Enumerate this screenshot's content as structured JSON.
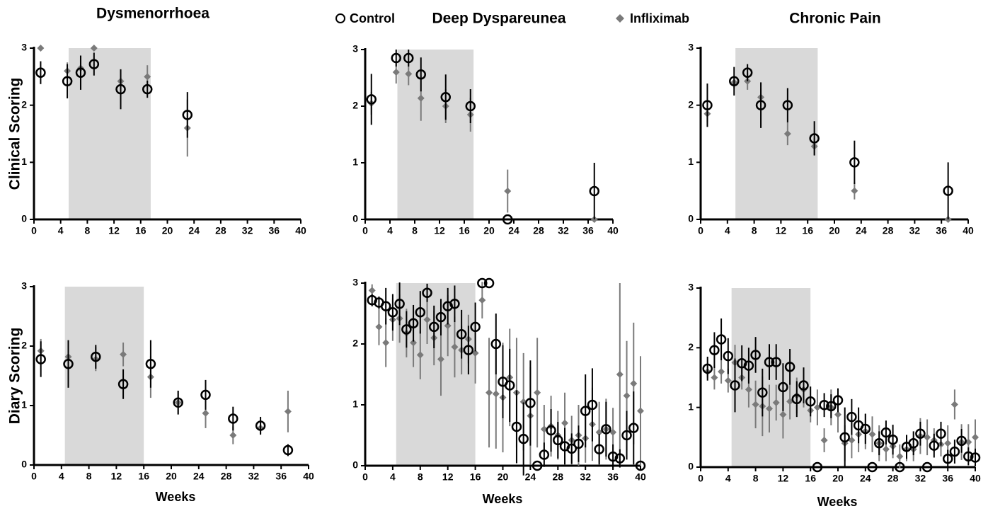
{
  "chart_data": [
    {
      "type": "scatter",
      "title": "Dysmenorrhoea",
      "ylabel": "Clinical Scoring",
      "xlim": [
        0,
        40
      ],
      "xticks": [
        0,
        4,
        8,
        12,
        16,
        20,
        24,
        28,
        32,
        36,
        40
      ],
      "ylim": [
        0,
        3
      ],
      "yticks": [
        0,
        1,
        2,
        3
      ],
      "shaded_span": [
        5.2,
        17.5
      ],
      "series": [
        {
          "name": "Control",
          "color": "#000000",
          "marker": "open-circle",
          "x": [
            1,
            5,
            7,
            9,
            13,
            17,
            23
          ],
          "values": [
            2.57,
            2.42,
            2.57,
            2.72,
            2.28,
            2.28,
            1.83
          ],
          "errors": [
            0.2,
            0.3,
            0.3,
            0.2,
            0.35,
            0.15,
            0.4
          ]
        },
        {
          "name": "Infliximab",
          "color": "#7a7a7a",
          "marker": "diamond",
          "x": [
            1,
            5,
            7,
            9,
            13,
            17,
            23
          ],
          "values": [
            3.0,
            2.6,
            2.65,
            3.0,
            2.42,
            2.5,
            1.6
          ],
          "errors": [
            0,
            0.15,
            0.15,
            0,
            0.2,
            0.2,
            0.5
          ]
        }
      ]
    },
    {
      "type": "scatter",
      "title": "Deep Dyspareunea",
      "xlim": [
        0,
        40
      ],
      "xticks": [
        0,
        4,
        8,
        12,
        16,
        20,
        24,
        28,
        32,
        36,
        40
      ],
      "ylim": [
        0,
        3
      ],
      "yticks": [
        0,
        1,
        2,
        3
      ],
      "shaded_span": [
        5.2,
        17.5
      ],
      "series": [
        {
          "color": "#000000",
          "marker": "open-circle",
          "x": [
            1,
            5,
            7,
            9,
            13,
            17,
            23,
            37
          ],
          "values": [
            2.12,
            2.85,
            2.85,
            2.56,
            2.16,
            2.0,
            0,
            0.5
          ],
          "errors": [
            0.45,
            0.15,
            0.15,
            0.3,
            0.4,
            0.3,
            0,
            0.5
          ]
        },
        {
          "color": "#7a7a7a",
          "marker": "diamond",
          "x": [
            1,
            5,
            7,
            9,
            13,
            17,
            23,
            37
          ],
          "values": [
            2.05,
            2.6,
            2.57,
            2.14,
            2.0,
            1.85,
            0.5,
            0
          ],
          "errors": [
            0.2,
            0.2,
            0.2,
            0.4,
            0.3,
            0.3,
            0.38,
            0
          ]
        }
      ]
    },
    {
      "type": "scatter",
      "title": "Chronic Pain",
      "xlim": [
        0,
        40
      ],
      "xticks": [
        0,
        4,
        8,
        12,
        16,
        20,
        24,
        28,
        32,
        36,
        40
      ],
      "ylim": [
        0,
        3
      ],
      "yticks": [
        0,
        1,
        2,
        3
      ],
      "shaded_span": [
        5.2,
        17.5
      ],
      "series": [
        {
          "color": "#000000",
          "marker": "open-circle",
          "x": [
            1,
            5,
            7,
            9,
            13,
            17,
            23,
            37
          ],
          "values": [
            2.0,
            2.42,
            2.57,
            2.0,
            2.0,
            1.42,
            1.0,
            0.5
          ],
          "errors": [
            0.38,
            0.25,
            0.15,
            0.4,
            0.3,
            0.3,
            0.38,
            0.5
          ]
        },
        {
          "color": "#7a7a7a",
          "marker": "diamond",
          "x": [
            1,
            5,
            7,
            9,
            13,
            17,
            23,
            37
          ],
          "values": [
            1.85,
            2.4,
            2.42,
            2.14,
            1.5,
            1.28,
            0.5,
            0
          ],
          "errors": [
            0.15,
            0.1,
            0.15,
            0.15,
            0.2,
            0.15,
            0.15,
            0
          ]
        }
      ]
    },
    {
      "type": "scatter",
      "ylabel": "Diary Scoring",
      "xlabel": "Weeks",
      "xlim": [
        0,
        40
      ],
      "xticks": [
        0,
        4,
        8,
        12,
        16,
        20,
        24,
        28,
        32,
        36,
        40
      ],
      "ylim": [
        0,
        3
      ],
      "yticks": [
        0,
        1,
        2,
        3
      ],
      "shaded_span": [
        4.5,
        16
      ],
      "series": [
        {
          "color": "#000000",
          "marker": "open-circle",
          "x": [
            1,
            5,
            9,
            13,
            17,
            21,
            25,
            29,
            33,
            37
          ],
          "values": [
            1.78,
            1.7,
            1.82,
            1.36,
            1.7,
            1.05,
            1.18,
            0.78,
            0.66,
            0.25
          ],
          "errors": [
            0.3,
            0.4,
            0.2,
            0.25,
            0.4,
            0.2,
            0.25,
            0.2,
            0.15,
            0.1
          ]
        },
        {
          "color": "#7a7a7a",
          "marker": "diamond",
          "x": [
            1,
            5,
            9,
            13,
            17,
            21,
            25,
            29,
            33,
            37
          ],
          "values": [
            1.92,
            1.82,
            1.78,
            1.86,
            1.48,
            1.05,
            0.87,
            0.5,
            0.62,
            0.9
          ],
          "errors": [
            0.2,
            0.25,
            0.2,
            0.2,
            0.35,
            0.2,
            0.25,
            0.15,
            0.1,
            0.35
          ]
        }
      ]
    },
    {
      "type": "scatter",
      "xlabel": "Weeks",
      "xlim": [
        0,
        40
      ],
      "xticks": [
        0,
        4,
        8,
        12,
        16,
        20,
        24,
        28,
        32,
        36,
        40
      ],
      "ylim": [
        0,
        3
      ],
      "yticks": [
        0,
        1,
        2,
        3
      ],
      "shaded_span": [
        4.5,
        16
      ],
      "series": [
        {
          "color": "#000000",
          "marker": "open-circle",
          "x": [
            1,
            2,
            3,
            4,
            5,
            6,
            7,
            8,
            9,
            10,
            11,
            12,
            13,
            14,
            15,
            16,
            17,
            18,
            19,
            20,
            21,
            22,
            23,
            24,
            25,
            26,
            27,
            28,
            29,
            30,
            31,
            32,
            33,
            34,
            35,
            36,
            37,
            38,
            39,
            40
          ],
          "values": [
            2.72,
            2.68,
            2.62,
            2.52,
            2.66,
            2.24,
            2.34,
            2.52,
            2.84,
            2.28,
            2.44,
            2.62,
            2.66,
            2.16,
            1.9,
            2.28,
            3.0,
            3.0,
            2.0,
            1.38,
            1.32,
            0.64,
            0.44,
            1.03,
            0,
            0.18,
            0.58,
            0.42,
            0.32,
            0.28,
            0.36,
            0.9,
            1.0,
            0.27,
            0.6,
            0.15,
            0.12,
            0.5,
            0.62,
            0
          ],
          "errors": [
            0.1,
            0.1,
            0.3,
            0.3,
            0.35,
            0.3,
            0.3,
            0.35,
            0.15,
            0.35,
            0.3,
            0.3,
            0.3,
            0.4,
            0.4,
            0.4,
            0,
            0,
            0.5,
            0.6,
            0.6,
            0.6,
            0.6,
            0.7,
            0,
            0.2,
            0.35,
            0.3,
            0.3,
            0.25,
            0.3,
            0.6,
            0.6,
            0.25,
            0.45,
            0.2,
            0.15,
            0.4,
            0.6,
            0
          ]
        },
        {
          "color": "#7a7a7a",
          "marker": "diamond",
          "x": [
            1,
            2,
            3,
            4,
            5,
            6,
            7,
            8,
            9,
            10,
            11,
            12,
            13,
            14,
            15,
            16,
            17,
            18,
            19,
            20,
            21,
            22,
            23,
            24,
            25,
            26,
            27,
            28,
            29,
            30,
            31,
            32,
            33,
            34,
            35,
            36,
            37,
            38,
            39,
            40
          ],
          "values": [
            2.88,
            2.28,
            2.02,
            2.4,
            2.42,
            2.18,
            2.02,
            1.82,
            2.4,
            2.1,
            1.75,
            2.3,
            1.95,
            1.9,
            2.08,
            1.85,
            2.72,
            1.2,
            1.18,
            1.12,
            1.45,
            1.2,
            1.05,
            0.82,
            1.2,
            0.6,
            0.65,
            0.5,
            0.7,
            0.42,
            0.5,
            0.45,
            0.68,
            0.55,
            0.6,
            0.55,
            1.5,
            1.15,
            1.35,
            0.9
          ],
          "errors": [
            0.1,
            0.3,
            0.4,
            0.35,
            0.4,
            0.4,
            0.4,
            0.4,
            0.4,
            0.45,
            0.6,
            0.5,
            0.5,
            0.4,
            0.4,
            0.5,
            0.3,
            0.9,
            0.9,
            0.9,
            0.8,
            0.9,
            0.8,
            0.8,
            0.9,
            0.4,
            0.5,
            0.4,
            0.5,
            0.4,
            0.5,
            0.4,
            0.6,
            0.5,
            0.5,
            0.4,
            1.5,
            0.9,
            1.0,
            0.9
          ]
        }
      ]
    },
    {
      "type": "scatter",
      "xlabel": "Weeks",
      "xlim": [
        0,
        40
      ],
      "xticks": [
        0,
        4,
        8,
        12,
        16,
        20,
        24,
        28,
        32,
        36,
        40
      ],
      "ylim": [
        0,
        3
      ],
      "yticks": [
        0,
        1,
        2,
        3
      ],
      "shaded_span": [
        4.5,
        16
      ],
      "series": [
        {
          "color": "#000000",
          "marker": "open-circle",
          "x": [
            1,
            2,
            3,
            4,
            5,
            6,
            7,
            8,
            9,
            10,
            11,
            12,
            13,
            14,
            15,
            16,
            17,
            18,
            19,
            20,
            21,
            22,
            23,
            24,
            25,
            26,
            27,
            28,
            29,
            30,
            31,
            32,
            33,
            34,
            35,
            36,
            37,
            38,
            39,
            40
          ],
          "values": [
            1.65,
            1.96,
            2.14,
            1.86,
            1.37,
            1.74,
            1.7,
            1.88,
            1.25,
            1.76,
            1.76,
            1.34,
            1.68,
            1.14,
            1.37,
            1.1,
            0,
            1.04,
            1.02,
            1.12,
            0.5,
            0.84,
            0.7,
            0.64,
            0,
            0.4,
            0.58,
            0.46,
            0,
            0.34,
            0.4,
            0.56,
            0,
            0.36,
            0.56,
            0.14,
            0.26,
            0.44,
            0.18,
            0.16
          ],
          "errors": [
            0.2,
            0.3,
            0.35,
            0.3,
            0.45,
            0.3,
            0.3,
            0.3,
            0.4,
            0.3,
            0.3,
            0.4,
            0.3,
            0.3,
            0.3,
            0.25,
            0,
            0.2,
            0.2,
            0.2,
            0.5,
            0.3,
            0.3,
            0.25,
            0,
            0.2,
            0.2,
            0.25,
            0,
            0.2,
            0.2,
            0.2,
            0,
            0.2,
            0.2,
            0.15,
            0.2,
            0.2,
            0.15,
            0.15
          ]
        },
        {
          "color": "#7a7a7a",
          "marker": "diamond",
          "x": [
            1,
            2,
            3,
            4,
            5,
            6,
            7,
            8,
            9,
            10,
            11,
            12,
            13,
            14,
            15,
            16,
            17,
            18,
            19,
            20,
            21,
            22,
            23,
            24,
            25,
            26,
            27,
            28,
            29,
            30,
            31,
            32,
            33,
            34,
            35,
            36,
            37,
            38,
            39,
            40
          ],
          "values": [
            1.6,
            1.5,
            1.6,
            1.45,
            1.75,
            1.5,
            1.3,
            1.05,
            1.02,
            0.98,
            1.08,
            0.88,
            1.1,
            1.2,
            1.3,
            0.95,
            1.0,
            0.45,
            1.0,
            0.88,
            0.4,
            0.45,
            0.55,
            0.6,
            0.55,
            0.4,
            0.3,
            0.35,
            0.18,
            0.3,
            0.3,
            0.52,
            0.5,
            0.45,
            0.38,
            0.4,
            1.05,
            0.42,
            0.42,
            0.5
          ],
          "errors": [
            0.1,
            0.2,
            0.2,
            0.2,
            0.3,
            0.2,
            0.3,
            0.4,
            0.5,
            0.4,
            0.3,
            0.4,
            0.3,
            0.3,
            0.3,
            0.2,
            0.3,
            0.2,
            0.3,
            0.3,
            0.3,
            0.3,
            0.3,
            0.3,
            0.3,
            0.3,
            0.2,
            0.2,
            0.2,
            0.2,
            0.2,
            0.3,
            0.3,
            0.2,
            0.2,
            0.3,
            0.25,
            0.3,
            0.3,
            0.3
          ]
        }
      ]
    }
  ]
}
